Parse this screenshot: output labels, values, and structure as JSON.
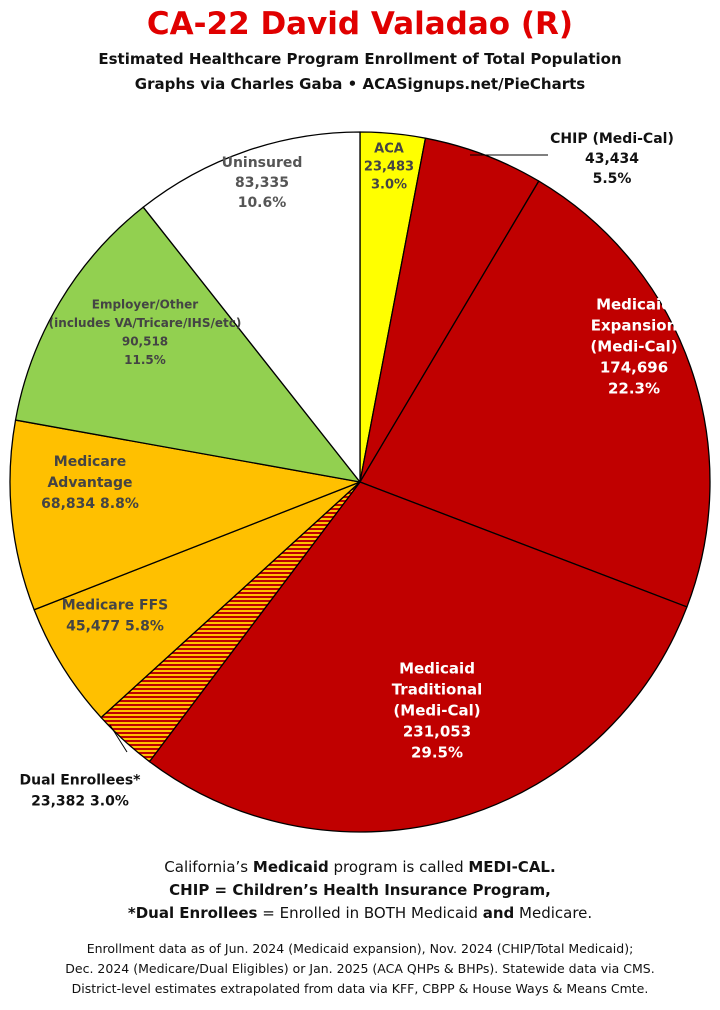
{
  "header": {
    "title": "CA-22 David Valadao (R)",
    "subtitle1": "Estimated Healthcare Program Enrollment of Total Population",
    "subtitle2": "Graphs via Charles Gaba  •  ACASignups.net/PieCharts"
  },
  "chart_data": {
    "type": "pie",
    "slices": [
      {
        "key": "aca",
        "lines": [
          "ACA",
          "23,483",
          "3.0%"
        ],
        "value": 23483,
        "percent": 3.0,
        "color": "#ffff00",
        "text_color": "#444444"
      },
      {
        "key": "chip",
        "lines": [
          "CHIP (Medi-Cal)",
          "43,434",
          "5.5%"
        ],
        "value": 43434,
        "percent": 5.5,
        "color": "#c00000",
        "text_color": "#111111"
      },
      {
        "key": "medicaid-expansion",
        "lines": [
          "Medicaid",
          "Expansion",
          "(Medi-Cal)",
          "174,696",
          "22.3%"
        ],
        "value": 174696,
        "percent": 22.3,
        "color": "#c00000",
        "text_color": "#ffffff"
      },
      {
        "key": "medicaid-traditional",
        "lines": [
          "Medicaid",
          "Traditional",
          "(Medi-Cal)",
          "231,053",
          "29.5%"
        ],
        "value": 231053,
        "percent": 29.5,
        "color": "#c00000",
        "text_color": "#ffffff"
      },
      {
        "key": "dual-enrollees",
        "lines": [
          "Dual Enrollees*",
          "23,382 3.0%"
        ],
        "value": 23382,
        "percent": 3.0,
        "color": "#e07000",
        "text_color": "#111111",
        "pattern": "hatched"
      },
      {
        "key": "medicare-ffs",
        "lines": [
          "Medicare FFS",
          "45,477 5.8%"
        ],
        "value": 45477,
        "percent": 5.8,
        "color": "#ffc000",
        "text_color": "#444444"
      },
      {
        "key": "medicare-advantage",
        "lines": [
          "Medicare",
          "Advantage",
          "68,834 8.8%"
        ],
        "value": 68834,
        "percent": 8.8,
        "color": "#ffc000",
        "text_color": "#444444"
      },
      {
        "key": "employer-other",
        "lines": [
          "Employer/Other",
          "(includes VA/Tricare/IHS/etc)",
          "90,518",
          "11.5%"
        ],
        "value": 90518,
        "percent": 11.5,
        "color": "#92d050",
        "text_color": "#444444"
      },
      {
        "key": "uninsured",
        "lines": [
          "Uninsured",
          "83,335",
          "10.6%"
        ],
        "value": 83335,
        "percent": 10.6,
        "color": "#ffffff",
        "text_color": "#555555"
      }
    ]
  },
  "notes": {
    "line1_pre": "California’s ",
    "line1_bold1": "Medicaid",
    "line1_mid": " program is called ",
    "line1_bold2": "MEDI-CAL.",
    "line2": "CHIP = Children’s Health Insurance Program,",
    "line3_bold": "*Dual Enrollees",
    "line3_mid": " = Enrolled in BOTH Medicaid ",
    "line3_bold2": "and",
    "line3_post": " Medicare."
  },
  "footer": {
    "line1": "Enrollment data as of Jun. 2024 (Medicaid expansion), Nov. 2024 (CHIP/Total Medicaid);",
    "line2": "Dec. 2024 (Medicare/Dual Eligibles) or Jan. 2025 (ACA QHPs & BHPs). Statewide data via CMS.",
    "line3": "District-level estimates extrapolated from data via KFF, CBPP & House Ways & Means Cmte."
  }
}
